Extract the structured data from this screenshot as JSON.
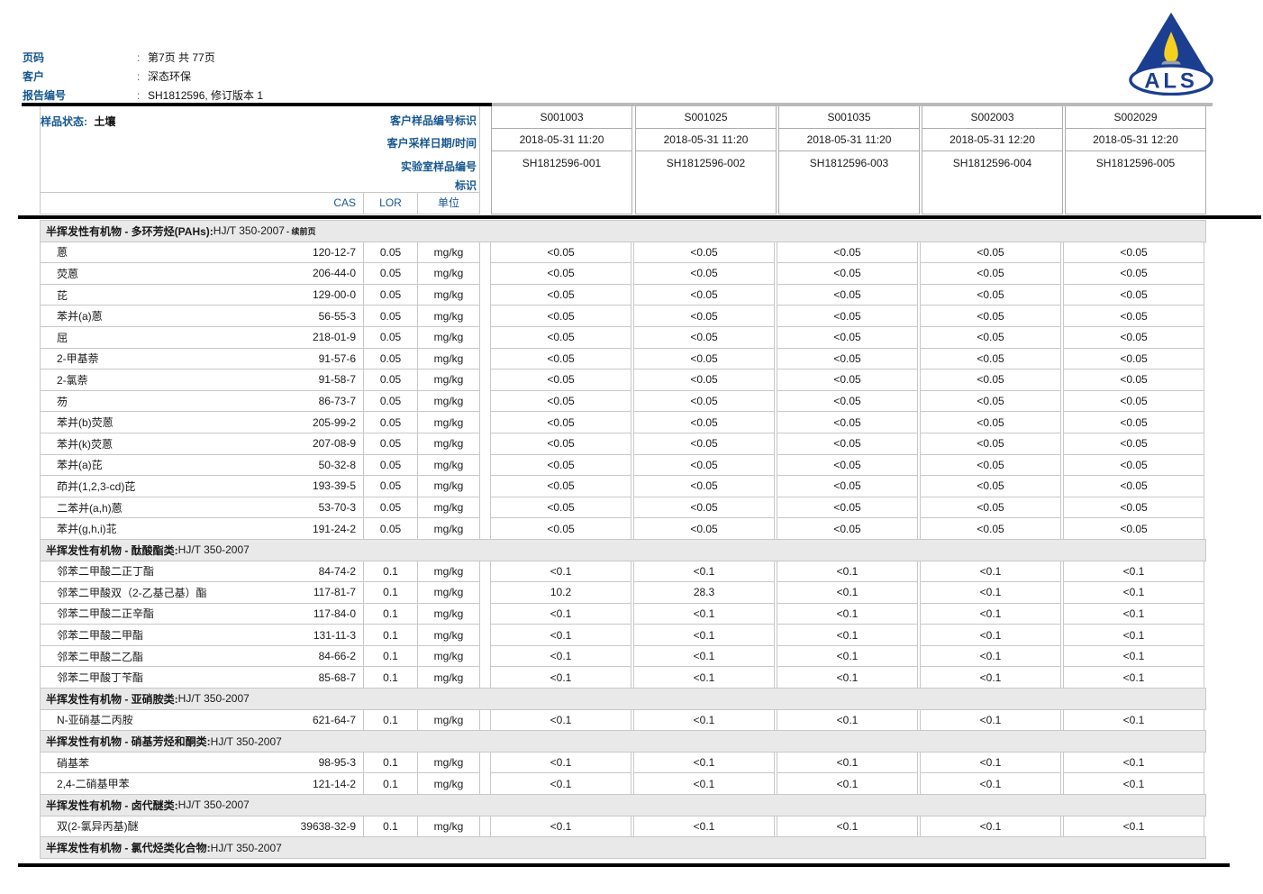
{
  "meta": {
    "colon": ":",
    "rows": [
      {
        "label": "页码",
        "value": "第7页 共 77页"
      },
      {
        "label": "客户",
        "value": "深态环保"
      },
      {
        "label": "报告编号",
        "value": "SH1812596, 修订版本 1"
      }
    ]
  },
  "logo": {
    "text": "ALS"
  },
  "sample_header": {
    "status_label": "样品状态:",
    "status_value": "土壤",
    "row_labels": [
      "客户样品编号标识",
      "客户采样日期/时间",
      "实验室样品编号",
      "标识"
    ],
    "columns": [
      {
        "id": "S001003",
        "datetime": "2018-05-31 11:20",
        "lab_id": "SH1812596-001"
      },
      {
        "id": "S001025",
        "datetime": "2018-05-31 11:20",
        "lab_id": "SH1812596-002"
      },
      {
        "id": "S001035",
        "datetime": "2018-05-31 11:20",
        "lab_id": "SH1812596-003"
      },
      {
        "id": "S002003",
        "datetime": "2018-05-31 12:20",
        "lab_id": "SH1812596-004"
      },
      {
        "id": "S002029",
        "datetime": "2018-05-31 12:20",
        "lab_id": "SH1812596-005"
      }
    ]
  },
  "table_header": {
    "cas": "CAS",
    "lor": "LOR",
    "unit": "单位"
  },
  "table": {
    "rows": [
      {
        "type": "section",
        "bold": "半挥发性有机物 - 多环芳烃(PAHs):",
        "normal": "HJ/T 350-2007",
        "note": "- 续前页"
      },
      {
        "type": "analyte",
        "name": "蒽",
        "cas": "120-12-7",
        "lor": "0.05",
        "unit": "mg/kg",
        "values": [
          "<0.05",
          "<0.05",
          "<0.05",
          "<0.05",
          "<0.05"
        ]
      },
      {
        "type": "analyte",
        "name": "荧蒽",
        "cas": "206-44-0",
        "lor": "0.05",
        "unit": "mg/kg",
        "values": [
          "<0.05",
          "<0.05",
          "<0.05",
          "<0.05",
          "<0.05"
        ]
      },
      {
        "type": "analyte",
        "name": "芘",
        "cas": "129-00-0",
        "lor": "0.05",
        "unit": "mg/kg",
        "values": [
          "<0.05",
          "<0.05",
          "<0.05",
          "<0.05",
          "<0.05"
        ]
      },
      {
        "type": "analyte",
        "name": "苯并(a)蒽",
        "cas": "56-55-3",
        "lor": "0.05",
        "unit": "mg/kg",
        "values": [
          "<0.05",
          "<0.05",
          "<0.05",
          "<0.05",
          "<0.05"
        ]
      },
      {
        "type": "analyte",
        "name": "屈",
        "cas": "218-01-9",
        "lor": "0.05",
        "unit": "mg/kg",
        "values": [
          "<0.05",
          "<0.05",
          "<0.05",
          "<0.05",
          "<0.05"
        ]
      },
      {
        "type": "analyte",
        "name": "2-甲基萘",
        "cas": "91-57-6",
        "lor": "0.05",
        "unit": "mg/kg",
        "values": [
          "<0.05",
          "<0.05",
          "<0.05",
          "<0.05",
          "<0.05"
        ]
      },
      {
        "type": "analyte",
        "name": "2-氯萘",
        "cas": "91-58-7",
        "lor": "0.05",
        "unit": "mg/kg",
        "values": [
          "<0.05",
          "<0.05",
          "<0.05",
          "<0.05",
          "<0.05"
        ]
      },
      {
        "type": "analyte",
        "name": "芴",
        "cas": "86-73-7",
        "lor": "0.05",
        "unit": "mg/kg",
        "values": [
          "<0.05",
          "<0.05",
          "<0.05",
          "<0.05",
          "<0.05"
        ]
      },
      {
        "type": "analyte",
        "name": "苯并(b)荧蒽",
        "cas": "205-99-2",
        "lor": "0.05",
        "unit": "mg/kg",
        "values": [
          "<0.05",
          "<0.05",
          "<0.05",
          "<0.05",
          "<0.05"
        ]
      },
      {
        "type": "analyte",
        "name": "苯并(k)荧蒽",
        "cas": "207-08-9",
        "lor": "0.05",
        "unit": "mg/kg",
        "values": [
          "<0.05",
          "<0.05",
          "<0.05",
          "<0.05",
          "<0.05"
        ]
      },
      {
        "type": "analyte",
        "name": "苯并(a)芘",
        "cas": "50-32-8",
        "lor": "0.05",
        "unit": "mg/kg",
        "values": [
          "<0.05",
          "<0.05",
          "<0.05",
          "<0.05",
          "<0.05"
        ]
      },
      {
        "type": "analyte",
        "name": "茚并(1,2,3-cd)芘",
        "cas": "193-39-5",
        "lor": "0.05",
        "unit": "mg/kg",
        "values": [
          "<0.05",
          "<0.05",
          "<0.05",
          "<0.05",
          "<0.05"
        ]
      },
      {
        "type": "analyte",
        "name": "二苯并(a,h)蒽",
        "cas": "53-70-3",
        "lor": "0.05",
        "unit": "mg/kg",
        "values": [
          "<0.05",
          "<0.05",
          "<0.05",
          "<0.05",
          "<0.05"
        ]
      },
      {
        "type": "analyte",
        "name": "苯并(g,h,i)苝",
        "cas": "191-24-2",
        "lor": "0.05",
        "unit": "mg/kg",
        "values": [
          "<0.05",
          "<0.05",
          "<0.05",
          "<0.05",
          "<0.05"
        ]
      },
      {
        "type": "section",
        "bold": "半挥发性有机物 - 酞酸酯类:",
        "normal": "HJ/T 350-2007",
        "note": ""
      },
      {
        "type": "analyte",
        "name": "邻苯二甲酸二正丁酯",
        "cas": "84-74-2",
        "lor": "0.1",
        "unit": "mg/kg",
        "values": [
          "<0.1",
          "<0.1",
          "<0.1",
          "<0.1",
          "<0.1"
        ]
      },
      {
        "type": "analyte",
        "name": "邻苯二甲酸双（2-乙基己基）酯",
        "cas": "117-81-7",
        "lor": "0.1",
        "unit": "mg/kg",
        "values": [
          "10.2",
          "28.3",
          "<0.1",
          "<0.1",
          "<0.1"
        ]
      },
      {
        "type": "analyte",
        "name": "邻苯二甲酸二正辛酯",
        "cas": "117-84-0",
        "lor": "0.1",
        "unit": "mg/kg",
        "values": [
          "<0.1",
          "<0.1",
          "<0.1",
          "<0.1",
          "<0.1"
        ]
      },
      {
        "type": "analyte",
        "name": "邻苯二甲酸二甲酯",
        "cas": "131-11-3",
        "lor": "0.1",
        "unit": "mg/kg",
        "values": [
          "<0.1",
          "<0.1",
          "<0.1",
          "<0.1",
          "<0.1"
        ]
      },
      {
        "type": "analyte",
        "name": "邻苯二甲酸二乙酯",
        "cas": "84-66-2",
        "lor": "0.1",
        "unit": "mg/kg",
        "values": [
          "<0.1",
          "<0.1",
          "<0.1",
          "<0.1",
          "<0.1"
        ]
      },
      {
        "type": "analyte",
        "name": "邻苯二甲酸丁苄酯",
        "cas": "85-68-7",
        "lor": "0.1",
        "unit": "mg/kg",
        "values": [
          "<0.1",
          "<0.1",
          "<0.1",
          "<0.1",
          "<0.1"
        ]
      },
      {
        "type": "section",
        "bold": "半挥发性有机物 - 亚硝胺类:",
        "normal": "HJ/T 350-2007",
        "note": ""
      },
      {
        "type": "analyte",
        "name": "N-亚硝基二丙胺",
        "cas": "621-64-7",
        "lor": "0.1",
        "unit": "mg/kg",
        "values": [
          "<0.1",
          "<0.1",
          "<0.1",
          "<0.1",
          "<0.1"
        ]
      },
      {
        "type": "section",
        "bold": "半挥发性有机物 - 硝基芳烃和酮类:",
        "normal": "HJ/T 350-2007",
        "note": ""
      },
      {
        "type": "analyte",
        "name": "硝基苯",
        "cas": "98-95-3",
        "lor": "0.1",
        "unit": "mg/kg",
        "values": [
          "<0.1",
          "<0.1",
          "<0.1",
          "<0.1",
          "<0.1"
        ]
      },
      {
        "type": "analyte",
        "name": "2,4-二硝基甲苯",
        "cas": "121-14-2",
        "lor": "0.1",
        "unit": "mg/kg",
        "values": [
          "<0.1",
          "<0.1",
          "<0.1",
          "<0.1",
          "<0.1"
        ]
      },
      {
        "type": "section",
        "bold": "半挥发性有机物 - 卤代醚类:",
        "normal": "HJ/T 350-2007",
        "note": ""
      },
      {
        "type": "analyte",
        "name": "双(2-氯异丙基)醚",
        "cas": "39638-32-9",
        "lor": "0.1",
        "unit": "mg/kg",
        "values": [
          "<0.1",
          "<0.1",
          "<0.1",
          "<0.1",
          "<0.1"
        ]
      },
      {
        "type": "section",
        "bold": "半挥发性有机物 - 氯代烃类化合物:",
        "normal": "HJ/T 350-2007",
        "note": ""
      }
    ]
  },
  "colors": {
    "accent_blue": "#17578f",
    "logo_blue": "#1b3e91",
    "flame_yellow": "#f5d020",
    "base_gray": "#98a0ac",
    "section_bg": "#e9e9e9",
    "grid_border": "#c8c8c8"
  }
}
